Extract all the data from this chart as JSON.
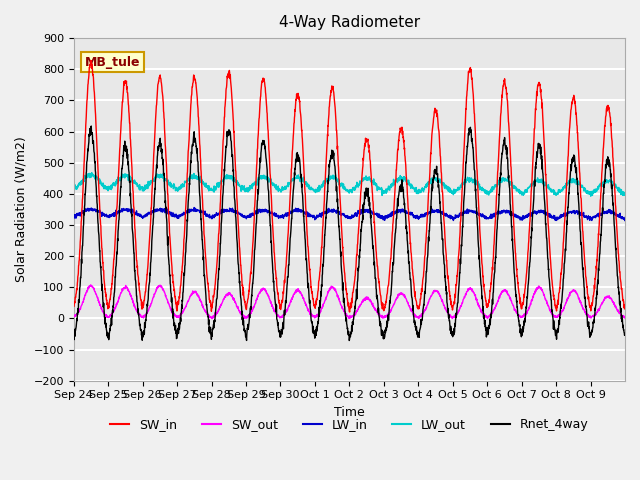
{
  "title": "4-Way Radiometer",
  "xlabel": "Time",
  "ylabel": "Solar Radiation (W/m2)",
  "ylim": [
    -200,
    900
  ],
  "yticks": [
    -200,
    -100,
    0,
    100,
    200,
    300,
    400,
    500,
    600,
    700,
    800,
    900
  ],
  "xlabels": [
    "Sep 24",
    "Sep 25",
    "Sep 26",
    "Sep 27",
    "Sep 28",
    "Sep 29",
    "Sep 30",
    "Oct 1",
    "Oct 2",
    "Oct 3",
    "Oct 4",
    "Oct 5",
    "Oct 6",
    "Oct 7",
    "Oct 8",
    "Oct 9"
  ],
  "annotation_text": "MB_tule",
  "annotation_bg": "#ffffcc",
  "annotation_border": "#cc9900",
  "colors": {
    "SW_in": "#ff0000",
    "SW_out": "#ff00ff",
    "LW_in": "#0000cc",
    "LW_out": "#00cccc",
    "Rnet_4way": "#000000"
  },
  "legend_labels": [
    "SW_in",
    "SW_out",
    "LW_in",
    "LW_out",
    "Rnet_4way"
  ],
  "background_color": "#e8e8e8",
  "grid_color": "#ffffff",
  "n_days": 16,
  "day_peaks_SW_in": [
    820,
    760,
    775,
    775,
    790,
    770,
    720,
    740,
    575,
    610,
    670,
    800,
    760,
    755,
    710,
    680
  ],
  "day_peaks_SW_out": [
    105,
    100,
    105,
    85,
    80,
    95,
    90,
    100,
    65,
    80,
    90,
    95,
    90,
    100,
    90,
    70
  ],
  "LW_in_base": 320,
  "LW_out_base": 410
}
